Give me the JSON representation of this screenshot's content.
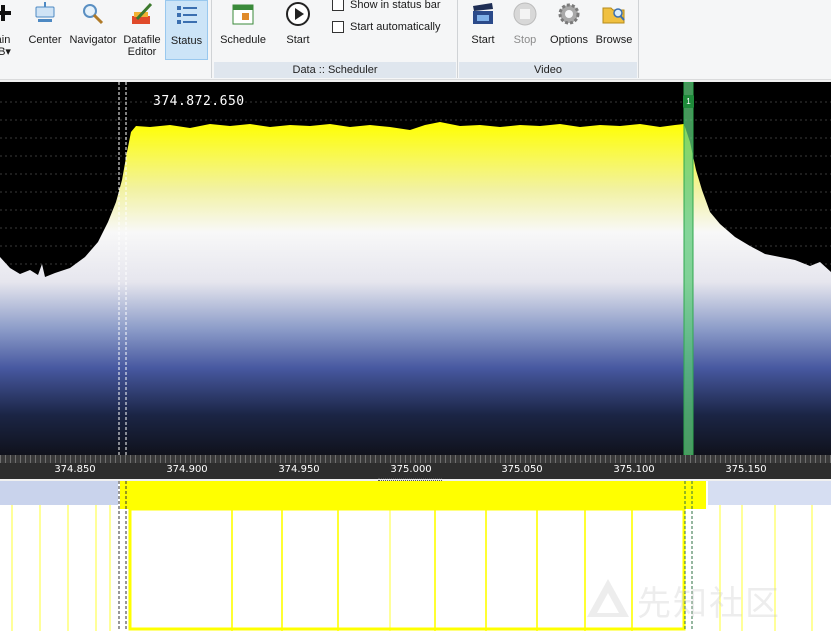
{
  "ribbon": {
    "buttons": [
      {
        "label": "ain\nIB▾",
        "icon": "main-ib-icon"
      },
      {
        "label": "Center",
        "icon": "center-icon"
      },
      {
        "label": "Navigator",
        "icon": "magnifier-icon"
      },
      {
        "label": "Datafile\nEditor",
        "icon": "datafile-editor-icon"
      },
      {
        "label": "Status",
        "icon": "status-list-icon",
        "active": true
      },
      {
        "label": "Schedule",
        "icon": "calendar-icon"
      },
      {
        "label": "Start",
        "icon": "play-icon"
      },
      {
        "label": "Start",
        "icon": "clapperboard-icon"
      },
      {
        "label": "Stop",
        "icon": "stop-icon",
        "disabled": true
      },
      {
        "label": "Options",
        "icon": "gear-icon"
      },
      {
        "label": "Browse",
        "icon": "folder-search-icon"
      }
    ],
    "checkboxes": [
      {
        "label": "Show in status bar",
        "checked": false
      },
      {
        "label": "Start automatically",
        "checked": false
      }
    ],
    "groups": {
      "scheduler": "Data :: Scheduler",
      "video": "Video"
    }
  },
  "spectrum": {
    "frequency_readout": "374.872.650",
    "marker_label": "1",
    "trace_color": "#ffff00",
    "marker_color": "#2fa84f",
    "axis_ticks": [
      "374.850",
      "374.900",
      "374.950",
      "375.000",
      "375.050",
      "375.100",
      "375.150"
    ]
  },
  "watermark": {
    "text": "先知社区",
    "icon": "watermark-logo-icon"
  }
}
